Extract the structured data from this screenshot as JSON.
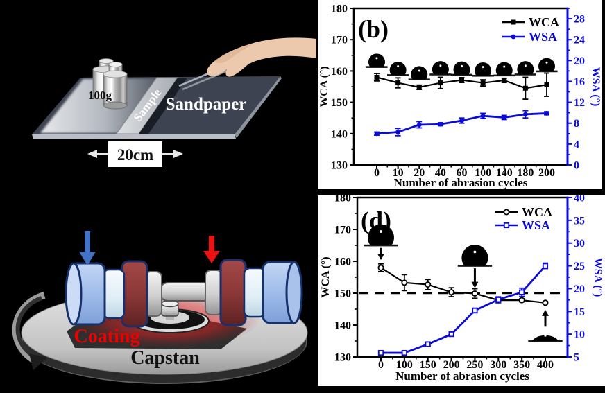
{
  "panel_a": {
    "weight_label": "100g",
    "sample_label": "Sample",
    "sandpaper_label": "Sandpaper",
    "dimension_label": "20cm"
  },
  "panel_c": {
    "coating_label": "Coating",
    "capstan_label": "Capstan"
  },
  "colors": {
    "wca_black": "#000000",
    "wsa_blue": "#0b0bd6",
    "coating_red": "#ee0000",
    "press_arrow_blue": "#4472c4",
    "press_arrow_red": "#ee1111"
  },
  "chart_data": [
    {
      "id": "b",
      "type": "line",
      "panel_label": "(b)",
      "xlabel": "Number of abrasion cycles",
      "categories": [
        "0",
        "10",
        "20",
        "40",
        "60",
        "100",
        "140",
        "180",
        "200"
      ],
      "left_axis": {
        "label": "WCA (°)",
        "range": [
          130,
          180
        ],
        "ticks": [
          130,
          140,
          150,
          160,
          170,
          180
        ],
        "color": "#000000"
      },
      "right_axis": {
        "label": "WSA (°)",
        "range": [
          0,
          30
        ],
        "ticks": [
          0,
          4,
          8,
          12,
          16,
          20,
          24,
          28
        ],
        "color": "#0b0bd6"
      },
      "legend_position": "top-right",
      "series": [
        {
          "name": "WCA",
          "axis": "left",
          "color": "#000000",
          "marker": "filled-square",
          "values": [
            158,
            156.2,
            154.8,
            156.2,
            157.1,
            156.2,
            157,
            154.5,
            155.6
          ],
          "errors": [
            1.2,
            1.6,
            0.7,
            1.8,
            0.8,
            1.0,
            0.7,
            3.5,
            3.7
          ]
        },
        {
          "name": "WSA",
          "axis": "right",
          "color": "#0b0bd6",
          "marker": "filled-circle",
          "values": [
            6,
            6.3,
            7.7,
            7.8,
            8.5,
            9.4,
            9.1,
            9.7,
            9.9
          ],
          "errors": [
            0.3,
            0.7,
            0.6,
            0.3,
            0.5,
            0.5,
            0.4,
            0.7,
            0.3
          ]
        }
      ],
      "droplet_icons": {
        "baseline_wca": [
          161.3,
          158.7,
          157.3,
          158.9,
          158.8,
          158.5,
          158.6,
          158.9,
          159.9
        ]
      }
    },
    {
      "id": "d",
      "type": "line",
      "panel_label": "(d)",
      "xlabel": "Number of abrasion cycles",
      "categories": [
        "0",
        "100",
        "150",
        "200",
        "250",
        "300",
        "350",
        "400"
      ],
      "left_axis": {
        "label": "WCA (°)",
        "range": [
          130,
          180
        ],
        "ticks": [
          130,
          140,
          150,
          160,
          170,
          180
        ],
        "color": "#000000"
      },
      "right_axis": {
        "label": "WSA (°)",
        "range": [
          5,
          40
        ],
        "ticks": [
          5,
          10,
          15,
          20,
          25,
          30,
          35,
          40
        ],
        "color": "#0b0bd6"
      },
      "reference_line_wca": 150,
      "legend_position": "top-right",
      "series": [
        {
          "name": "WCA",
          "axis": "left",
          "color": "#000000",
          "marker": "open-circle",
          "values": [
            158,
            153.3,
            152.7,
            150.3,
            149.9,
            147.8,
            147.8,
            147
          ],
          "errors": [
            1.2,
            2.5,
            1.6,
            1.4,
            1.5,
            0.8,
            0.5,
            0.4
          ]
        },
        {
          "name": "WSA",
          "axis": "right",
          "color": "#0b0bd6",
          "marker": "open-square",
          "values": [
            5.9,
            5.9,
            7.8,
            10,
            15.2,
            17.6,
            19.2,
            25
          ],
          "errors": [
            0.3,
            0.3,
            0.4,
            0.4,
            0.5,
            0.6,
            0.9,
            0.6
          ]
        }
      ],
      "annotations": [
        {
          "category_index": 0,
          "droplet_baseline_wca": 165,
          "droplet_shape": "round",
          "arrow_from_wca": 164.2,
          "arrow_to_wca": 160.4
        },
        {
          "category_index": 4,
          "droplet_baseline_wca": 158.6,
          "droplet_shape": "round",
          "arrow_from_wca": 157.8,
          "arrow_to_wca": 151.6
        },
        {
          "category_index": 7,
          "droplet_baseline_wca": 135,
          "droplet_shape": "flat",
          "arrow_from_wca": 139.5,
          "arrow_to_wca": 144.8
        }
      ]
    }
  ]
}
